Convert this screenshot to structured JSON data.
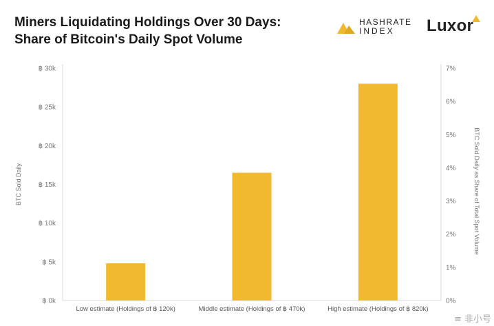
{
  "header": {
    "title": "Miners Liquidating Holdings Over 30 Days: Share of Bitcoin's Daily Spot Volume",
    "logos": {
      "hashrate_line1": "HASHRATE",
      "hashrate_line2": "INDEX",
      "luxor": "Luxor"
    }
  },
  "watermark": "≡ 非小号",
  "chart_data": {
    "type": "bar",
    "categories": [
      "Low estimate (Holdings of ฿ 120k)",
      "Middle estimate (Holdings of ฿ 470k)",
      "High estimate (Holdings of ฿ 820k)"
    ],
    "values": [
      4800,
      16500,
      28000
    ],
    "color": "#f0b930",
    "ylabel": "BTC Sold Daily",
    "ylim": [
      0,
      30000
    ],
    "yticks": [
      {
        "v": 0,
        "label": "฿ 0k"
      },
      {
        "v": 5000,
        "label": "฿ 5k"
      },
      {
        "v": 10000,
        "label": "฿ 10k"
      },
      {
        "v": 15000,
        "label": "฿ 15k"
      },
      {
        "v": 20000,
        "label": "฿ 20k"
      },
      {
        "v": 25000,
        "label": "฿ 25k"
      },
      {
        "v": 30000,
        "label": "฿ 30k"
      }
    ],
    "y2label": "BTC Sold Daily as Share of Total Spot Volume",
    "y2lim": [
      0,
      7
    ],
    "y2ticks": [
      {
        "v": 0,
        "label": "0%"
      },
      {
        "v": 1,
        "label": "1%"
      },
      {
        "v": 2,
        "label": "2%"
      },
      {
        "v": 3,
        "label": "3%"
      },
      {
        "v": 4,
        "label": "4%"
      },
      {
        "v": 5,
        "label": "5%"
      },
      {
        "v": 6,
        "label": "6%"
      },
      {
        "v": 7,
        "label": "7%"
      }
    ],
    "grid": false,
    "legend": "none"
  }
}
